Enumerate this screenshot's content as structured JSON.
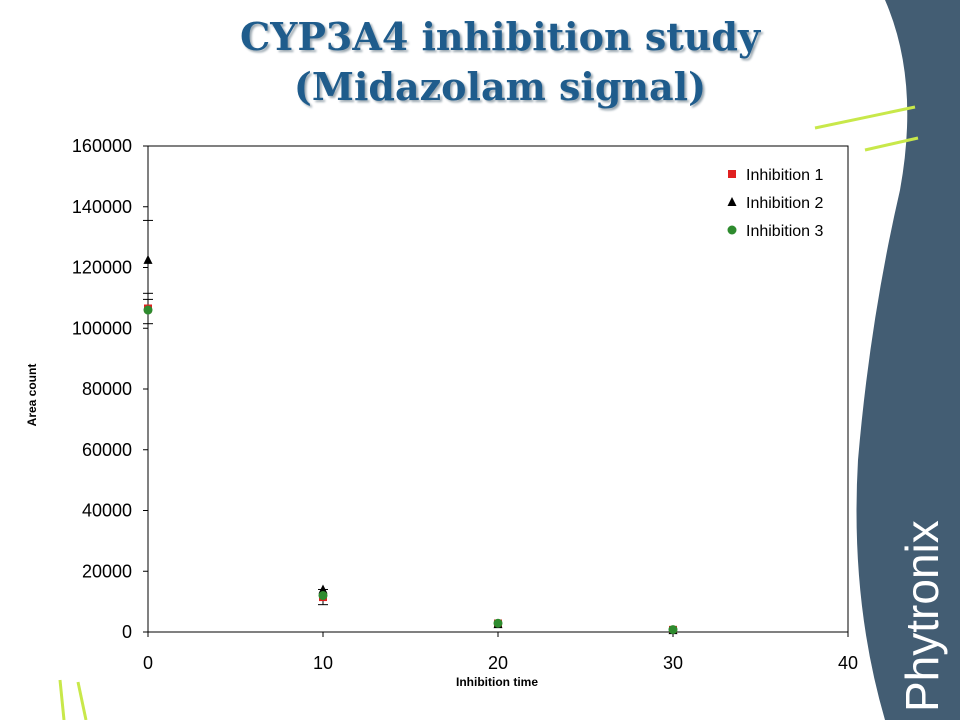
{
  "slide": {
    "title_line1": "CYP3A4 inhibition study",
    "title_line2": "(Midazolam signal)",
    "logo_text": "Phytronix"
  },
  "colors": {
    "title": "#1f5c8c",
    "sidebar": "#435d73",
    "accent_lines": "#c8e84a"
  },
  "chart_data": {
    "type": "scatter",
    "xlabel": "Inhibition time",
    "ylabel": "Area count",
    "xlim": [
      0,
      40
    ],
    "ylim": [
      0,
      160000
    ],
    "xticks": [
      0,
      10,
      20,
      30,
      40
    ],
    "yticks": [
      0,
      20000,
      40000,
      60000,
      80000,
      100000,
      120000,
      140000,
      160000
    ],
    "grid": false,
    "legend_position": "top-right",
    "series": [
      {
        "name": "Inhibition 1",
        "marker": "square",
        "color": "#e02020",
        "x": [
          0,
          10,
          20,
          30
        ],
        "y": [
          106500,
          11500,
          2800,
          700
        ],
        "err": [
          5000,
          2500,
          0,
          0
        ]
      },
      {
        "name": "Inhibition 2",
        "marker": "triangle",
        "color": "#000000",
        "x": [
          0,
          10,
          20,
          30
        ],
        "y": [
          122500,
          14000,
          2600,
          600
        ],
        "err": [
          13000,
          0,
          0,
          0
        ]
      },
      {
        "name": "Inhibition 3",
        "marker": "circle",
        "color": "#2e8b2e",
        "x": [
          0,
          10,
          20,
          30
        ],
        "y": [
          106000,
          12000,
          2900,
          800
        ],
        "err": [
          0,
          0,
          0,
          0
        ]
      }
    ]
  }
}
